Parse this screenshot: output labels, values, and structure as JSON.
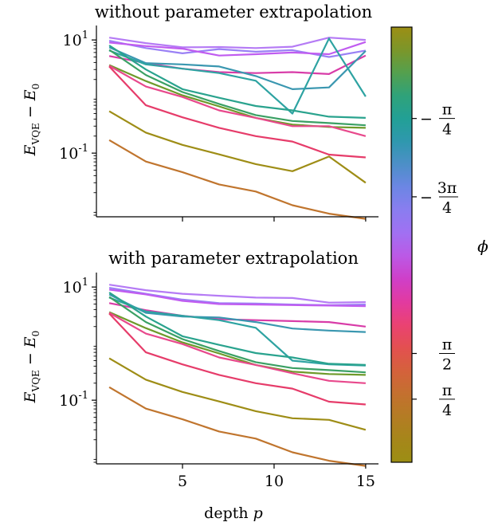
{
  "figure": {
    "xlabel": "depth p",
    "colorbar_label": "ϕ"
  },
  "chart_data": [
    {
      "type": "line",
      "title": "without parameter extrapolation",
      "xlabel": "",
      "ylabel": "E_VQE − E_0",
      "yscale": "log",
      "xlim": [
        0.3,
        15.7
      ],
      "ylim": [
        0.0075,
        18
      ],
      "xticks": [
        5,
        10,
        15
      ],
      "yticks": [
        {
          "value": 10,
          "label": "10^1"
        },
        {
          "value": 0.1,
          "label": "10^-1"
        }
      ],
      "x": [
        1,
        3,
        5,
        7,
        9,
        11,
        13,
        15
      ],
      "series": [
        {
          "color": "#b57bf5",
          "values": [
            11.0,
            8.8,
            7.4,
            7.5,
            7.2,
            7.6,
            11.0,
            10.0
          ]
        },
        {
          "color": "#9a81f5",
          "values": [
            9.7,
            7.2,
            5.8,
            6.9,
            6.2,
            6.6,
            5.0,
            6.5
          ]
        },
        {
          "color": "#c05cf0",
          "values": [
            9.0,
            7.8,
            7.0,
            5.3,
            5.6,
            6.0,
            5.6,
            9.2
          ]
        },
        {
          "color": "#d83ca8",
          "values": [
            5.2,
            3.9,
            3.1,
            2.7,
            2.6,
            2.7,
            2.5,
            5.3
          ]
        },
        {
          "color": "#3a97b0",
          "values": [
            7.4,
            3.9,
            3.7,
            3.4,
            2.3,
            1.35,
            1.45,
            6.4
          ]
        },
        {
          "color": "#2ea3a2",
          "values": [
            6.5,
            3.7,
            3.1,
            2.6,
            1.9,
            0.5,
            10.6,
            1.0
          ]
        },
        {
          "color": "#2aa38e",
          "values": [
            8.0,
            3.0,
            1.35,
            0.95,
            0.68,
            0.57,
            0.44,
            0.42
          ]
        },
        {
          "color": "#3aa064",
          "values": [
            6.7,
            2.4,
            1.2,
            0.74,
            0.47,
            0.37,
            0.34,
            0.31
          ]
        },
        {
          "color": "#6e9a2a",
          "values": [
            3.6,
            1.88,
            1.05,
            0.67,
            0.42,
            0.32,
            0.29,
            0.28
          ]
        },
        {
          "color": "#e8498c",
          "values": [
            3.5,
            1.5,
            0.98,
            0.57,
            0.42,
            0.3,
            0.3,
            0.2
          ]
        },
        {
          "color": "#e63c6a",
          "values": [
            3.4,
            0.7,
            0.43,
            0.28,
            0.2,
            0.16,
            0.094,
            0.084
          ]
        },
        {
          "color": "#9e8d16",
          "values": [
            0.55,
            0.23,
            0.14,
            0.095,
            0.064,
            0.048,
            0.087,
            0.03
          ]
        },
        {
          "color": "#c0752e",
          "values": [
            0.17,
            0.071,
            0.046,
            0.028,
            0.021,
            0.012,
            0.0085,
            0.0069
          ]
        }
      ]
    },
    {
      "type": "line",
      "title": "with parameter extrapolation",
      "xlabel": "depth p",
      "ylabel": "E_VQE − E_0",
      "yscale": "log",
      "xlim": [
        0.3,
        15.7
      ],
      "ylim": [
        0.0075,
        18
      ],
      "xticks": [
        5,
        10,
        15
      ],
      "yticks": [
        {
          "value": 10,
          "label": "10^1"
        },
        {
          "value": 0.1,
          "label": "10^-1"
        }
      ],
      "x": [
        1,
        3,
        5,
        7,
        9,
        11,
        13,
        15
      ],
      "series": [
        {
          "color": "#b57bf5",
          "values": [
            11.0,
            8.8,
            7.6,
            7.0,
            6.5,
            6.4,
            5.3,
            5.4
          ]
        },
        {
          "color": "#9a81f5",
          "values": [
            9.7,
            7.6,
            6.0,
            5.2,
            5.1,
            4.9,
            4.8,
            4.9
          ]
        },
        {
          "color": "#c05cf0",
          "values": [
            9.0,
            7.4,
            5.7,
            5.0,
            4.9,
            4.8,
            4.7,
            4.6
          ]
        },
        {
          "color": "#d83ca8",
          "values": [
            5.2,
            3.9,
            3.1,
            2.7,
            2.6,
            2.5,
            2.4,
            2.0
          ]
        },
        {
          "color": "#3a97b0",
          "values": [
            7.4,
            3.5,
            3.0,
            2.9,
            2.4,
            1.85,
            1.7,
            1.6
          ]
        },
        {
          "color": "#2ea3a2",
          "values": [
            6.5,
            3.7,
            3.1,
            2.6,
            1.9,
            0.5,
            0.43,
            0.41
          ]
        },
        {
          "color": "#2aa38e",
          "values": [
            8.0,
            3.0,
            1.35,
            0.95,
            0.68,
            0.57,
            0.44,
            0.42
          ]
        },
        {
          "color": "#3aa064",
          "values": [
            6.7,
            2.4,
            1.2,
            0.74,
            0.47,
            0.37,
            0.34,
            0.31
          ]
        },
        {
          "color": "#6e9a2a",
          "values": [
            3.6,
            1.88,
            1.05,
            0.67,
            0.42,
            0.32,
            0.29,
            0.28
          ]
        },
        {
          "color": "#e8498c",
          "values": [
            3.5,
            1.5,
            0.98,
            0.57,
            0.42,
            0.3,
            0.22,
            0.2
          ]
        },
        {
          "color": "#e63c6a",
          "values": [
            3.4,
            0.7,
            0.43,
            0.28,
            0.2,
            0.16,
            0.094,
            0.084
          ]
        },
        {
          "color": "#9e8d16",
          "values": [
            0.55,
            0.23,
            0.14,
            0.095,
            0.064,
            0.048,
            0.045,
            0.03
          ]
        },
        {
          "color": "#c0752e",
          "values": [
            0.17,
            0.071,
            0.046,
            0.028,
            0.021,
            0.012,
            0.0085,
            0.0069
          ]
        }
      ]
    }
  ],
  "colorbar": {
    "label": "ϕ",
    "ticks": [
      {
        "label_num": "π",
        "label_den": "4",
        "sign": "−",
        "frac": 0.21
      },
      {
        "label_num": "3π",
        "label_den": "4",
        "sign": "−",
        "frac": 0.39
      },
      {
        "label_num": "π",
        "label_den": "2",
        "sign": "",
        "frac": 0.75
      },
      {
        "label_num": "π",
        "label_den": "4",
        "sign": "",
        "frac": 0.855
      }
    ],
    "gradient": [
      "#9c8e14",
      "#a6861a",
      "#b47c24",
      "#c4702f",
      "#d5613c",
      "#e35050",
      "#ea4272",
      "#e23aa0",
      "#cf3fc8",
      "#bb59e6",
      "#a170f2",
      "#8a7df0",
      "#6c86e4",
      "#4d8fc8",
      "#2f98ae",
      "#22a096",
      "#2fa27a",
      "#54a04e",
      "#7b962a",
      "#9c8e14"
    ]
  }
}
